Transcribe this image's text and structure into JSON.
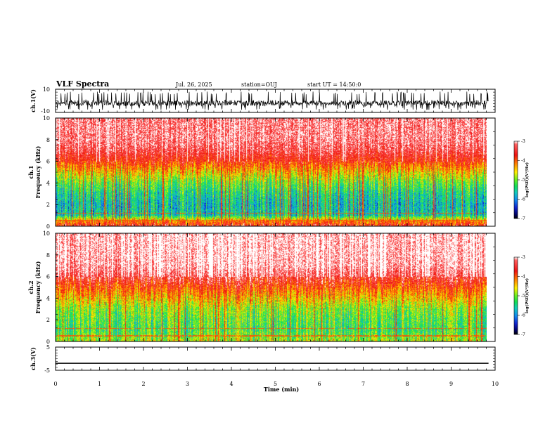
{
  "header": {
    "title": "VLF Spectra",
    "date": "Jul. 26, 2025",
    "station": "station=OUJ",
    "start": "start UT =  14:50:0"
  },
  "panels": {
    "ch1_wave": {
      "ylabel": "ch.1(V)",
      "yticks": [
        "10",
        "-10"
      ]
    },
    "ch1_spec": {
      "ylabel": "ch.1",
      "ylabel2": "Frequency (kHz)",
      "yticks": [
        "10",
        "8",
        "6",
        "4",
        "2",
        "0"
      ]
    },
    "ch2_spec": {
      "ylabel": "ch.2",
      "ylabel2": "Frequency (kHz)",
      "yticks": [
        "10",
        "8",
        "6",
        "4",
        "2",
        "0"
      ]
    },
    "ch3_wave": {
      "ylabel": "ch.3(V)",
      "yticks": [
        "5",
        "-5"
      ]
    }
  },
  "colorbar": {
    "ticks": [
      "-3",
      "-4",
      "-5",
      "-6",
      "-7"
    ],
    "label": "log(PSD)(V²/Hz)"
  },
  "xaxis": {
    "label": "Time (min)",
    "ticks": [
      "0",
      "1",
      "2",
      "3",
      "4",
      "5",
      "6",
      "7",
      "8",
      "9",
      "10"
    ]
  },
  "colors": {
    "red": "#ee2211",
    "orange": "#ff8800",
    "yellow": "#ffee00",
    "green": "#22dd33",
    "cyan": "#11ccbb",
    "blue": "#1133cc",
    "white_streak": "#ffffff"
  },
  "chart_data": [
    {
      "type": "line",
      "name": "ch.1 waveform",
      "xlabel": "",
      "ylabel": "ch.1(V)",
      "xlim": [
        0,
        9.85
      ],
      "ylim": [
        -10,
        10
      ],
      "x": [
        0,
        1,
        2,
        3,
        4,
        5,
        6,
        7,
        8,
        9,
        9.85
      ],
      "values": [
        -2,
        -2,
        -2,
        -2,
        -2,
        -2,
        -2,
        -2,
        -2,
        -2,
        -2
      ],
      "envelope": [
        -8,
        8
      ]
    },
    {
      "type": "heatmap",
      "name": "ch.1 spectrogram",
      "xlabel": "",
      "ylabel": "Frequency (kHz)",
      "xlim": [
        0,
        10
      ],
      "ylim": [
        0,
        10
      ],
      "zlabel": "log(PSD)(V²/Hz)",
      "zlim": [
        -7,
        -3
      ],
      "profile_freq_khz": [
        0,
        0.5,
        1,
        2,
        3,
        4,
        5,
        6,
        7,
        8,
        9,
        10
      ],
      "profile_log_psd": [
        -3.6,
        -4.3,
        -5.6,
        -5.7,
        -5.5,
        -5.1,
        -4.5,
        -3.8,
        -3.4,
        -3.2,
        -3.2,
        -3.2
      ]
    },
    {
      "type": "heatmap",
      "name": "ch.2 spectrogram",
      "xlabel": "",
      "ylabel": "Frequency (kHz)",
      "xlim": [
        0,
        10
      ],
      "ylim": [
        0,
        10
      ],
      "zlabel": "log(PSD)(V²/Hz)",
      "zlim": [
        -7,
        -3
      ],
      "profile_freq_khz": [
        0,
        0.5,
        1,
        2,
        3,
        4,
        5,
        6,
        7,
        8,
        9,
        10
      ],
      "profile_log_psd": [
        -4.8,
        -5.0,
        -5.2,
        -5.1,
        -4.9,
        -4.4,
        -3.9,
        -3.4,
        -3.1,
        -3.05,
        -3.05,
        -3.05
      ]
    },
    {
      "type": "line",
      "name": "ch.3 waveform",
      "xlabel": "Time (min)",
      "ylabel": "ch.3(V)",
      "xlim": [
        0,
        9.85
      ],
      "ylim": [
        -5,
        5
      ],
      "x": [
        0,
        9.85
      ],
      "values": [
        -2,
        -2
      ]
    }
  ]
}
